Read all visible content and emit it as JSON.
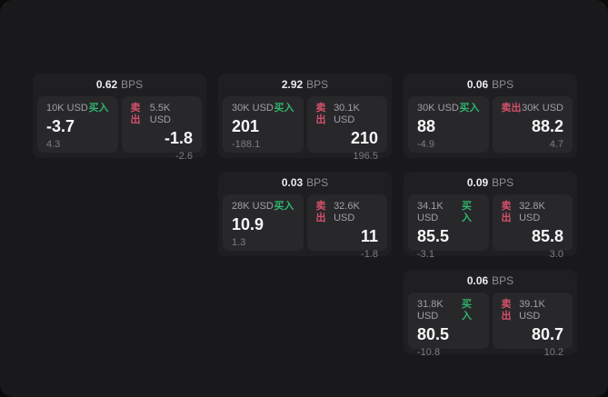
{
  "labels": {
    "bps_unit": "BPS",
    "buy": "买入",
    "sell": "卖出"
  },
  "colors": {
    "buy_accent": "#2fb46a",
    "sell_accent": "#d5506b",
    "window_bg": "#19191b",
    "card_bg": "#1f1f21",
    "panel_bg": "#28282b"
  },
  "cards": [
    {
      "row": 1,
      "col": 1,
      "bps": "0.62",
      "buy": {
        "size": "10K USD",
        "price": "-3.7",
        "sub": "4.3"
      },
      "sell": {
        "size": "5.5K USD",
        "price": "-1.8",
        "sub": "-2.6"
      }
    },
    {
      "row": 1,
      "col": 2,
      "bps": "2.92",
      "buy": {
        "size": "30K USD",
        "price": "201",
        "sub": "-188.1"
      },
      "sell": {
        "size": "30.1K USD",
        "price": "210",
        "sub": "196.5"
      }
    },
    {
      "row": 1,
      "col": 3,
      "bps": "0.06",
      "buy": {
        "size": "30K USD",
        "price": "88",
        "sub": "-4.9"
      },
      "sell": {
        "size": "30K USD",
        "price": "88.2",
        "sub": "4.7"
      }
    },
    {
      "row": 2,
      "col": 2,
      "bps": "0.03",
      "buy": {
        "size": "28K USD",
        "price": "10.9",
        "sub": "1.3"
      },
      "sell": {
        "size": "32.6K USD",
        "price": "11",
        "sub": "-1.8"
      }
    },
    {
      "row": 2,
      "col": 3,
      "bps": "0.09",
      "buy": {
        "size": "34.1K USD",
        "price": "85.5",
        "sub": "-3.1"
      },
      "sell": {
        "size": "32.8K USD",
        "price": "85.8",
        "sub": "3.0"
      }
    },
    {
      "row": 3,
      "col": 3,
      "bps": "0.06",
      "buy": {
        "size": "31.8K USD",
        "price": "80.5",
        "sub": "-10.8"
      },
      "sell": {
        "size": "39.1K USD",
        "price": "80.7",
        "sub": "10.2"
      }
    }
  ]
}
